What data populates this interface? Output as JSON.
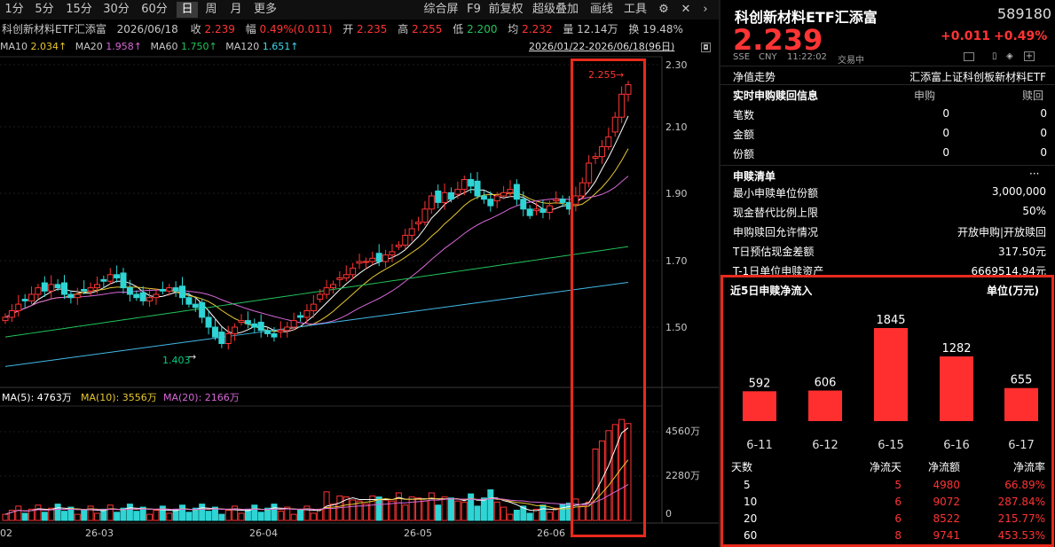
{
  "toolbar": {
    "periods": [
      "1分",
      "5分",
      "15分",
      "30分",
      "60分",
      "日",
      "周",
      "月",
      "更多"
    ],
    "active": "日",
    "right_items": [
      "综合屏",
      "F9",
      "前复权",
      "超级叠加",
      "画线",
      "工具"
    ]
  },
  "info": {
    "name": "科创新材料ETF汇添富",
    "date": "2026/06/18",
    "close_label": "收",
    "close": "2.239",
    "amp_label": "幅",
    "amp": "0.49%(0.011)",
    "open_label": "开",
    "open": "2.235",
    "high_label": "高",
    "high": "2.255",
    "low_label": "低",
    "low": "2.200",
    "avg_label": "均",
    "avg": "2.232",
    "vol_label": "量",
    "vol": "12.14万",
    "turn_label": "换",
    "turn": "19.48%"
  },
  "ma": {
    "ma10_label": "MA10",
    "ma10": "2.034↑",
    "ma20_label": "MA20",
    "ma20": "1.958↑",
    "ma60_label": "MA60",
    "ma60": "1.750↑",
    "ma120_label": "MA120",
    "ma120": "1.651↑",
    "range": "2026/01/22-2026/06/18(96日)"
  },
  "price_axis": [
    "2.30",
    "2.10",
    "1.90",
    "1.70",
    "1.50"
  ],
  "annotations": {
    "high": "2.255",
    "low": "1.403"
  },
  "vol_ma": {
    "ma5": "MA(5): 4763万",
    "ma10": "MA(10): 3556万",
    "ma20": "MA(20): 2166万"
  },
  "vol_axis": [
    "4560万",
    "2280万",
    "0"
  ],
  "date_axis": [
    "02",
    "26-03",
    "26-04",
    "26-05",
    "26-06"
  ],
  "quote": {
    "name": "科创新材料ETF汇添富",
    "code": "589180",
    "price": "2.239",
    "change": "+0.011",
    "change_pct": "+0.49%",
    "exchange": "SSE",
    "currency": "CNY",
    "time": "11:22:02",
    "status": "交易中"
  },
  "nav": {
    "label": "净值走势",
    "fund": "汇添富上证科创板新材料ETF"
  },
  "realtime": {
    "title": "实时申购赎回信息",
    "col1": "申购",
    "col2": "赎回",
    "rows": [
      {
        "label": "笔数",
        "a": "0",
        "b": "0"
      },
      {
        "label": "金额",
        "a": "0",
        "b": "0"
      },
      {
        "label": "份额",
        "a": "0",
        "b": "0"
      }
    ]
  },
  "redeem_list": {
    "title": "申赎清单",
    "more": "···",
    "rows": [
      {
        "label": "最小申赎单位份额",
        "value": "3,000,000"
      },
      {
        "label": "现金替代比例上限",
        "value": "50%"
      },
      {
        "label": "申购赎回允许情况",
        "value": "开放申购|开放赎回"
      },
      {
        "label": "T日预估现金差额",
        "value": "317.50元"
      },
      {
        "label": "T-1日单位申赎资产",
        "value": "6669514.94元"
      }
    ]
  },
  "netflow": {
    "title": "近5日申赎净流入",
    "unit": "单位(万元)",
    "table_headers": [
      "天数",
      "净流天",
      "净流额",
      "净流率"
    ],
    "table_rows": [
      {
        "days": "5",
        "flow_days": "5",
        "amount": "4980",
        "rate": "66.89%"
      },
      {
        "days": "10",
        "flow_days": "6",
        "amount": "9072",
        "rate": "287.84%"
      },
      {
        "days": "20",
        "flow_days": "6",
        "amount": "8522",
        "rate": "215.77%"
      },
      {
        "days": "60",
        "flow_days": "8",
        "amount": "9741",
        "rate": "453.53%"
      }
    ]
  },
  "chart_data": {
    "type": "bar",
    "title": "近5日申赎净流入",
    "ylabel": "单位(万元)",
    "categories": [
      "6-11",
      "6-12",
      "6-15",
      "6-16",
      "6-17"
    ],
    "values": [
      592,
      606,
      1845,
      1282,
      655
    ],
    "ylim": [
      0,
      1845
    ],
    "color": "#ff2f2f"
  },
  "colors": {
    "up": "#ff3434",
    "down": "#2fd4d4",
    "highlight": "#e8291c"
  }
}
